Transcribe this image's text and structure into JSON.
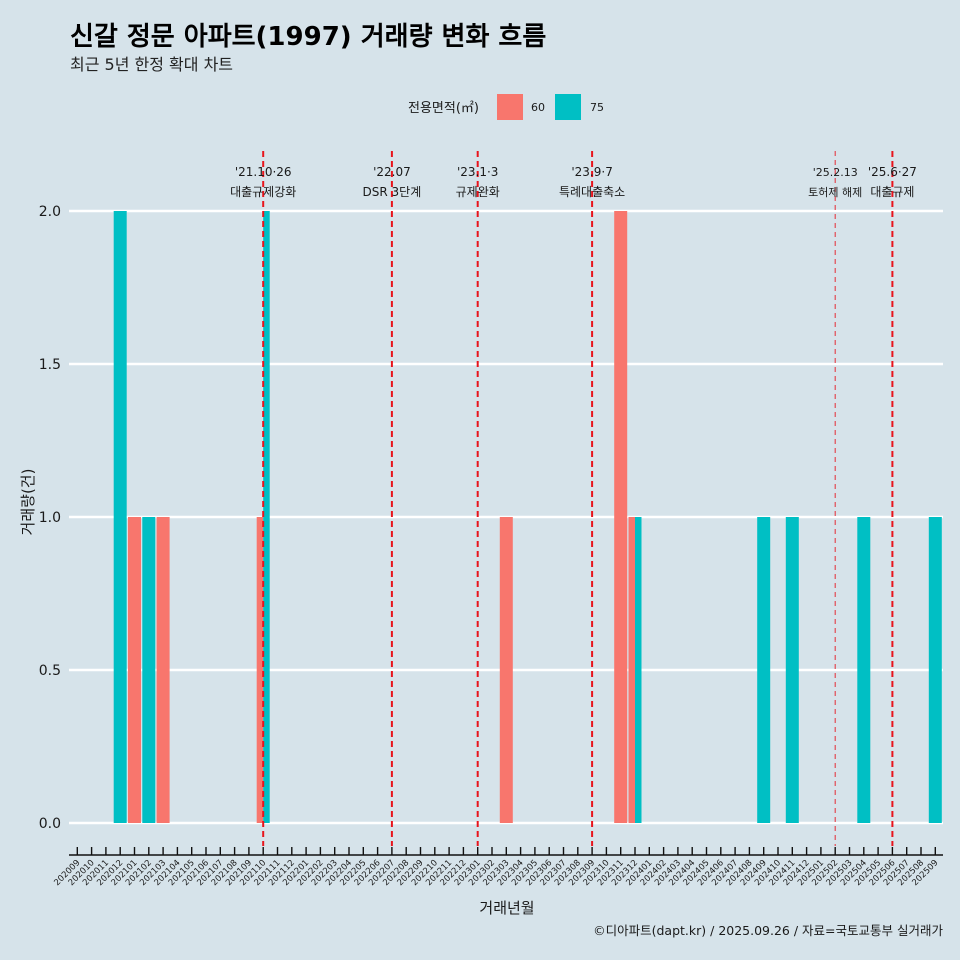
{
  "chart_data": {
    "type": "bar",
    "title": "신갈 정문 아파트(1997) 거래량 변화 흐름",
    "subtitle": "최근 5년 한정 확대 차트",
    "xlabel": "거래년월",
    "ylabel": "거래량(건)",
    "ylim": [
      0,
      2
    ],
    "yticks": [
      "0.0",
      "0.5",
      "1.0",
      "1.5",
      "2.0"
    ],
    "ytick_values": [
      0,
      0.5,
      1,
      1.5,
      2
    ],
    "grid": true,
    "legend": {
      "title": "전용면적(㎡)",
      "position": "top",
      "entries": [
        {
          "label": "60",
          "color": "#F8766D"
        },
        {
          "label": "75",
          "color": "#00BFC4"
        }
      ]
    },
    "categories": [
      "202009",
      "202010",
      "202011",
      "202012",
      "202101",
      "202102",
      "202103",
      "202104",
      "202105",
      "202106",
      "202107",
      "202108",
      "202109",
      "202110",
      "202111",
      "202112",
      "202201",
      "202202",
      "202203",
      "202204",
      "202205",
      "202206",
      "202207",
      "202208",
      "202209",
      "202210",
      "202211",
      "202212",
      "202301",
      "202302",
      "202303",
      "202304",
      "202305",
      "202306",
      "202307",
      "202308",
      "202309",
      "202310",
      "202311",
      "202312",
      "202401",
      "202402",
      "202403",
      "202404",
      "202405",
      "202406",
      "202407",
      "202408",
      "202409",
      "202410",
      "202411",
      "202412",
      "202501",
      "202502",
      "202503",
      "202504",
      "202505",
      "202506",
      "202507",
      "202508",
      "202509"
    ],
    "series": [
      {
        "name": "60",
        "color": "#F8766D",
        "points": [
          {
            "x": "202101",
            "y": 1
          },
          {
            "x": "202103",
            "y": 1
          },
          {
            "x": "202110",
            "y": 1
          },
          {
            "x": "202303",
            "y": 1
          },
          {
            "x": "202311",
            "y": 2
          },
          {
            "x": "202312",
            "y": 1
          }
        ]
      },
      {
        "name": "75",
        "color": "#00BFC4",
        "points": [
          {
            "x": "202012",
            "y": 2
          },
          {
            "x": "202102",
            "y": 1
          },
          {
            "x": "202110",
            "y": 2
          },
          {
            "x": "202312",
            "y": 1
          },
          {
            "x": "202409",
            "y": 1
          },
          {
            "x": "202411",
            "y": 1
          },
          {
            "x": "202504",
            "y": 1
          },
          {
            "x": "202509",
            "y": 1
          }
        ]
      }
    ],
    "annotations": [
      {
        "x": "202110",
        "date": "'21.10·26",
        "text": "대출규제강화",
        "style": "major"
      },
      {
        "x": "202207",
        "date": "'22.07",
        "text": "DSR 3단계",
        "style": "major"
      },
      {
        "x": "202301",
        "date": "'23.1·3",
        "text": "규제완화",
        "style": "major"
      },
      {
        "x": "202309",
        "date": "'23.9·7",
        "text": "특례대출축소",
        "style": "major"
      },
      {
        "x": "202502",
        "date": "'25.2.13",
        "text": "토허제 해제",
        "style": "minor"
      },
      {
        "x": "202506",
        "date": "'25.6·27",
        "text": "대출규제",
        "style": "major"
      }
    ],
    "annotation_color": "#E8141C",
    "caption": "©디아파트(dapt.kr) / 2025.09.26 / 자료=국토교통부 실거래가"
  }
}
